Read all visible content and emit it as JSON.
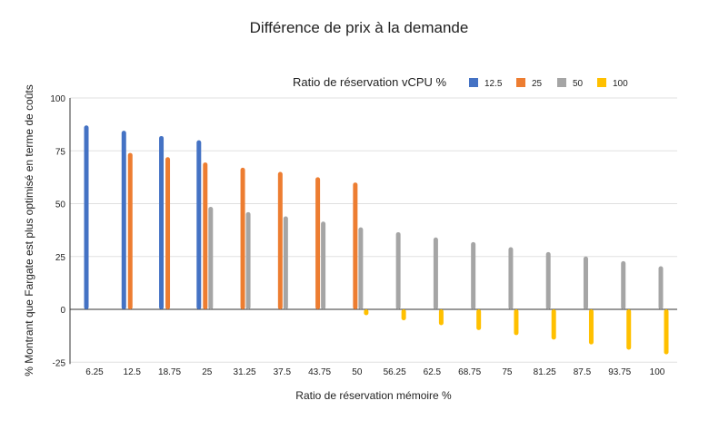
{
  "chart_data": {
    "type": "bar",
    "title": "Différence de prix à la demande",
    "xlabel": "Ratio de réservation mémoire %",
    "ylabel": "% Montrant que Fargate est plus optimisé en terme de coûts",
    "legend_title": "Ratio de réservation vCPU %",
    "legend_position": "top-right",
    "grid": true,
    "ylim": [
      -25,
      100
    ],
    "yticks": [
      "100",
      "75",
      "50",
      "25",
      "0",
      "-25"
    ],
    "categories": [
      "6.25",
      "12.5",
      "18.75",
      "25",
      "31.25",
      "37.5",
      "43.75",
      "50",
      "56.25",
      "62.5",
      "68.75",
      "75",
      "81.25",
      "87.5",
      "93.75",
      "100"
    ],
    "series": [
      {
        "name": "12.5",
        "color": "#4472c4",
        "values": [
          87,
          84.5,
          82,
          80,
          null,
          null,
          null,
          null,
          null,
          null,
          null,
          null,
          null,
          null,
          null,
          null
        ]
      },
      {
        "name": "25",
        "color": "#ed7d31",
        "values": [
          null,
          74,
          72,
          69.5,
          67,
          65,
          62.5,
          60,
          null,
          null,
          null,
          null,
          null,
          null,
          null,
          null
        ]
      },
      {
        "name": "50",
        "color": "#a5a5a5",
        "values": [
          null,
          null,
          null,
          48.5,
          46,
          44,
          41.5,
          38.8,
          36.5,
          34,
          31.8,
          29.4,
          27.1,
          25,
          22.8,
          20.4
        ]
      },
      {
        "name": "100",
        "color": "#ffc000",
        "values": [
          null,
          null,
          null,
          null,
          null,
          null,
          null,
          -2.8,
          -5.2,
          -7.5,
          -9.8,
          -12.2,
          -14.3,
          -16.6,
          -19.1,
          -21.3
        ]
      }
    ]
  }
}
